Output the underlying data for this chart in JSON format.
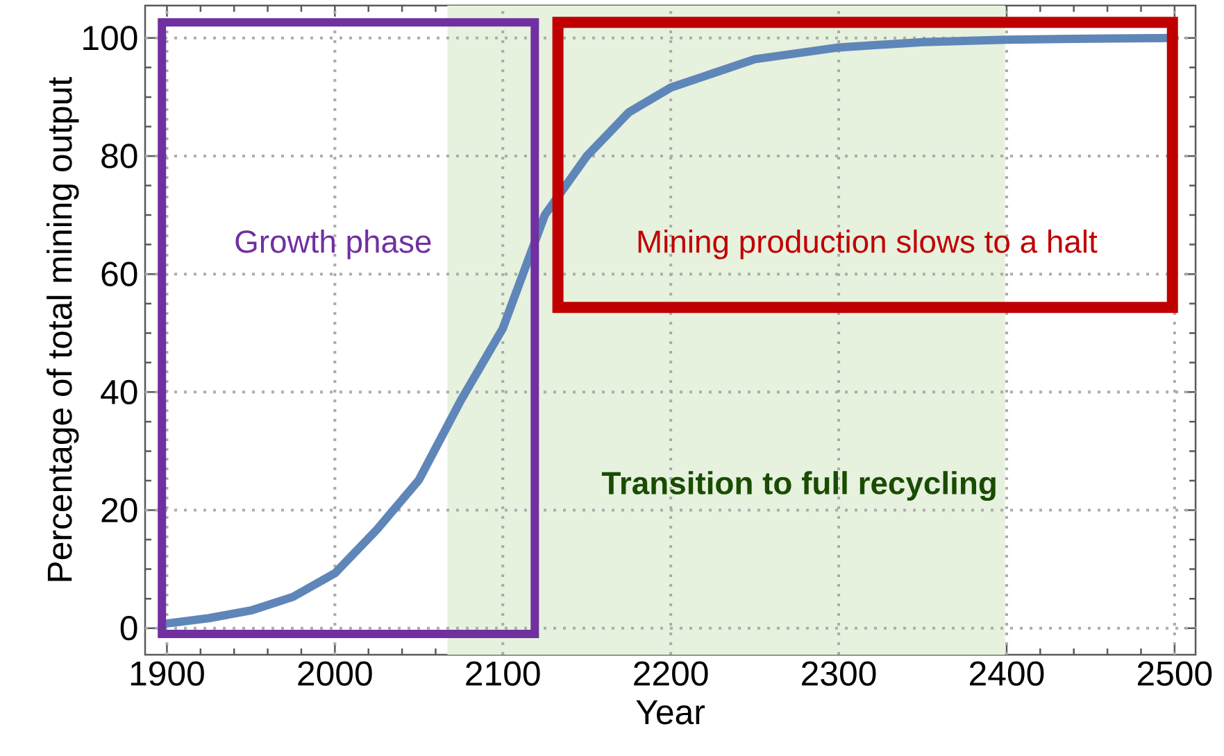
{
  "chart_data": {
    "type": "line",
    "xlabel": "Year",
    "ylabel": "Percentage of total mining output",
    "x": [
      1900,
      1925,
      1950,
      1975,
      2000,
      2025,
      2050,
      2075,
      2100,
      2125,
      2150,
      2175,
      2200,
      2250,
      2300,
      2350,
      2400,
      2450,
      2500
    ],
    "values": [
      0.8,
      1.7,
      3.0,
      5.3,
      9.3,
      16.7,
      25.1,
      38.6,
      50.8,
      70,
      80,
      87.4,
      91.6,
      96.4,
      98.4,
      99.3,
      99.7,
      99.9,
      100
    ],
    "color": "#5f86b8",
    "marker": "none",
    "line_style": "solid",
    "xlim": [
      1887,
      2512.5
    ],
    "ylim": [
      -4.5,
      105.5
    ],
    "xticks": [
      1900,
      2000,
      2100,
      2200,
      2300,
      2400,
      2500
    ],
    "yticks": [
      0,
      20,
      40,
      60,
      80,
      100
    ],
    "grid": true,
    "bands": [
      {
        "axis": "x",
        "from": 2067,
        "to": 2399,
        "label": "Transition to full recycling",
        "color": "#e6f1de"
      }
    ],
    "annotations": [
      "Growth phase",
      "Mining production slows to a halt"
    ]
  }
}
